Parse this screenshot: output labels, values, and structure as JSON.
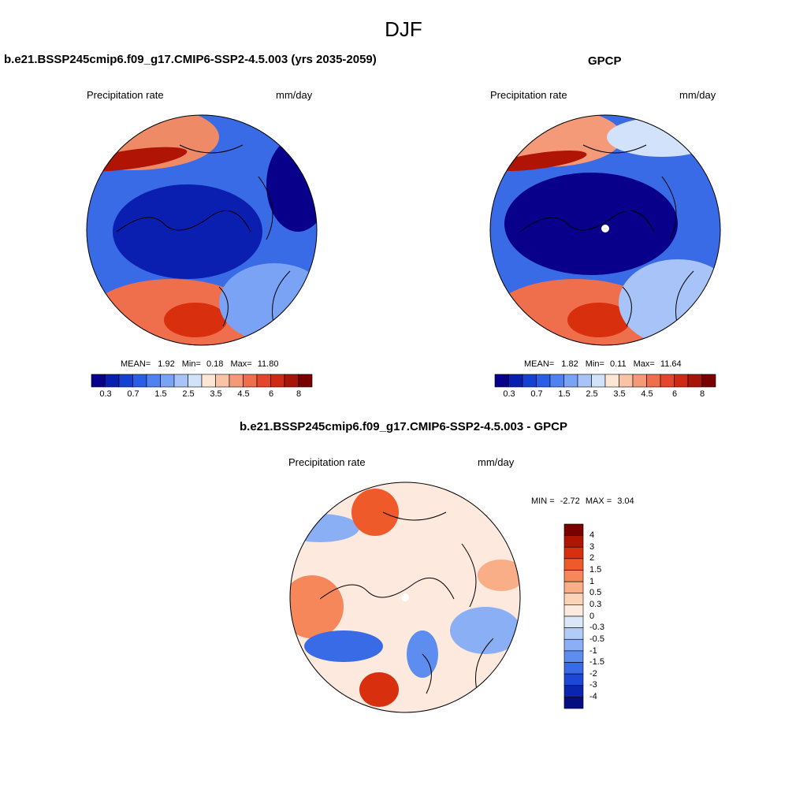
{
  "figure": {
    "title": "DJF"
  },
  "panels": {
    "model": {
      "title": "b.e21.BSSP245cmip6.f09_g17.CMIP6-SSP2-4.5.003 (yrs 2035-2059)",
      "variable": "Precipitation rate",
      "units": "mm/day",
      "mean_label": "MEAN=",
      "mean": "1.92",
      "min_label": "Min=",
      "min": "0.18",
      "max_label": "Max=",
      "max": "11.80"
    },
    "obs": {
      "title": "GPCP",
      "variable": "Precipitation rate",
      "units": "mm/day",
      "mean_label": "MEAN=",
      "mean": "1.82",
      "min_label": "Min=",
      "min": "0.11",
      "max_label": "Max=",
      "max": "11.64"
    },
    "diff": {
      "title": "b.e21.BSSP245cmip6.f09_g17.CMIP6-SSP2-4.5.003 - GPCP",
      "variable": "Precipitation rate",
      "units": "mm/day",
      "min_label": "MIN =",
      "min": "-2.72",
      "max_label": "MAX =",
      "max": "3.04"
    }
  },
  "colorbars": {
    "precip": {
      "colors": [
        "#08008a",
        "#0a1fb0",
        "#1441d2",
        "#2a5ee8",
        "#4f82f0",
        "#7aa3f5",
        "#a7c3f8",
        "#d3e2fb",
        "#fde6d6",
        "#f9c3a6",
        "#f59a78",
        "#ef6e4c",
        "#e5452a",
        "#cf2a14",
        "#a81408",
        "#7a0000"
      ],
      "ticks": [
        "0.3",
        "0.7",
        "1.5",
        "2.5",
        "3.5",
        "4.5",
        "6",
        "8"
      ]
    },
    "diff": {
      "colors": [
        "#7a0000",
        "#b01404",
        "#d8300e",
        "#ef5a2a",
        "#f5875a",
        "#f9ae88",
        "#fcd2b8",
        "#fde9dd",
        "#dbe6f8",
        "#b3ccf7",
        "#8aaff4",
        "#5e8df0",
        "#3a6be6",
        "#1d48d4",
        "#0a26b0",
        "#050e80"
      ],
      "ticks": [
        "4",
        "3",
        "2",
        "1.5",
        "1",
        "0.5",
        "0.3",
        "0",
        "-0.3",
        "-0.5",
        "-1",
        "-1.5",
        "-2",
        "-3",
        "-4"
      ]
    }
  }
}
